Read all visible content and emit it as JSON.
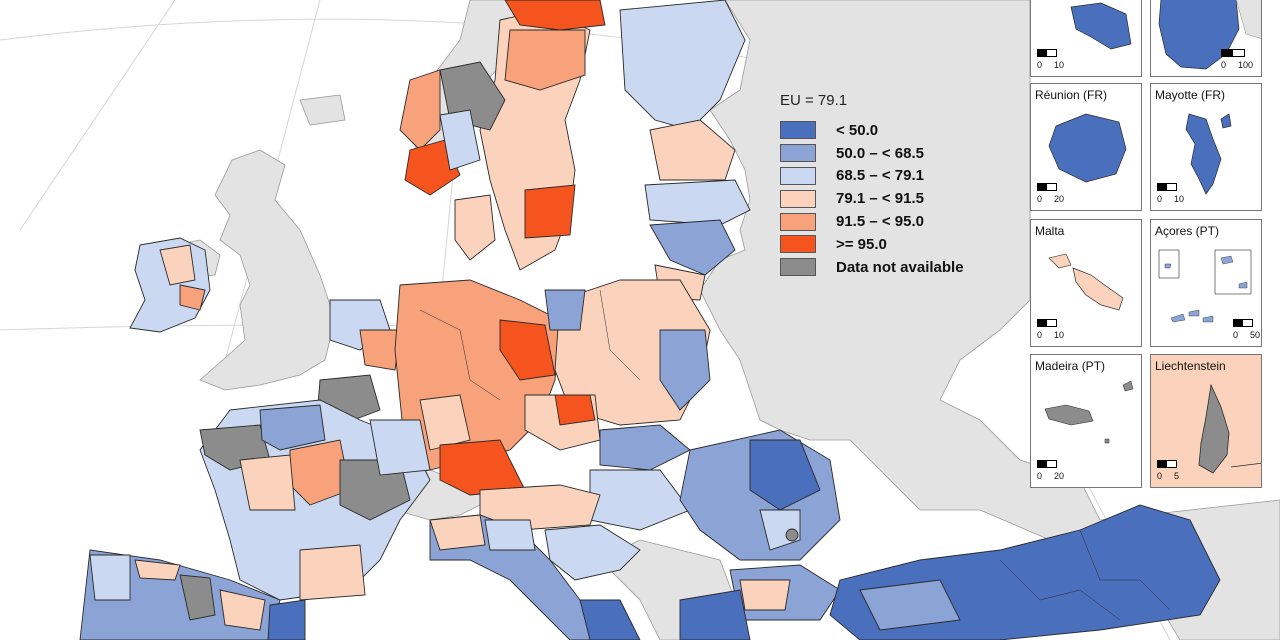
{
  "map": {
    "colors": {
      "sea": "#ffffff",
      "non_eu": "#e3e3e3",
      "lt50": "#4a6fbc",
      "c50_685": "#8ca3d6",
      "c685_791": "#cad9f1",
      "c791_915": "#fbd3bc",
      "c915_95": "#f7a27a",
      "ge95": "#f5541e",
      "na": "#8c8c8c"
    }
  },
  "legend": {
    "title": "EU = 79.1",
    "items": [
      {
        "label": "< 50.0",
        "color": "#4a6fbc"
      },
      {
        "label": "50.0 – < 68.5",
        "color": "#8ca3d6"
      },
      {
        "label": "68.5 – < 79.1",
        "color": "#cad9f1"
      },
      {
        "label": "79.1 – < 91.5",
        "color": "#fbd3bc"
      },
      {
        "label": "91.5 – < 95.0",
        "color": "#f7a27a"
      },
      {
        "label": ">= 95.0",
        "color": "#f5541e"
      },
      {
        "label": "Data not available",
        "color": "#8c8c8c"
      }
    ]
  },
  "insets": {
    "guadeloupe": {
      "scale_a": "0",
      "scale_b": "10"
    },
    "guyane": {
      "scale_a": "0",
      "scale_b": "100"
    },
    "reunion": {
      "title": "Réunion (FR)",
      "scale_a": "0",
      "scale_b": "20"
    },
    "mayotte": {
      "title": "Mayotte (FR)",
      "scale_a": "0",
      "scale_b": "10"
    },
    "malta": {
      "title": "Malta",
      "scale_a": "0",
      "scale_b": "10"
    },
    "acores": {
      "title": "Açores (PT)",
      "scale_a": "0",
      "scale_b": "50"
    },
    "madeira": {
      "title": "Madeira (PT)",
      "scale_a": "0",
      "scale_b": "20"
    },
    "liechtenstein": {
      "title": "Liechtenstein",
      "scale_a": "0",
      "scale_b": "5"
    }
  }
}
